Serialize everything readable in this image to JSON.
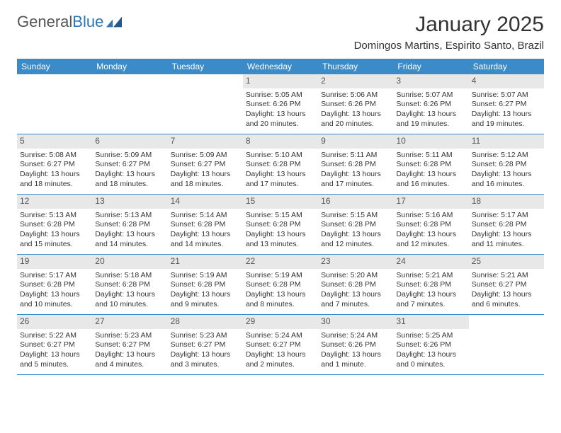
{
  "logo": {
    "text_general": "General",
    "text_blue": "Blue"
  },
  "title": "January 2025",
  "location": "Domingos Martins, Espirito Santo, Brazil",
  "colors": {
    "header_bg": "#3b8bc9",
    "header_text": "#ffffff",
    "daynum_bg": "#e8e8e8",
    "border": "#3b8bc9",
    "text": "#333333",
    "logo_gray": "#555555",
    "logo_blue": "#2e75b6"
  },
  "weekdays": [
    "Sunday",
    "Monday",
    "Tuesday",
    "Wednesday",
    "Thursday",
    "Friday",
    "Saturday"
  ],
  "weeks": [
    [
      null,
      null,
      null,
      {
        "n": "1",
        "sunrise": "5:05 AM",
        "sunset": "6:26 PM",
        "dl1": "Daylight: 13 hours",
        "dl2": "and 20 minutes."
      },
      {
        "n": "2",
        "sunrise": "5:06 AM",
        "sunset": "6:26 PM",
        "dl1": "Daylight: 13 hours",
        "dl2": "and 20 minutes."
      },
      {
        "n": "3",
        "sunrise": "5:07 AM",
        "sunset": "6:26 PM",
        "dl1": "Daylight: 13 hours",
        "dl2": "and 19 minutes."
      },
      {
        "n": "4",
        "sunrise": "5:07 AM",
        "sunset": "6:27 PM",
        "dl1": "Daylight: 13 hours",
        "dl2": "and 19 minutes."
      }
    ],
    [
      {
        "n": "5",
        "sunrise": "5:08 AM",
        "sunset": "6:27 PM",
        "dl1": "Daylight: 13 hours",
        "dl2": "and 18 minutes."
      },
      {
        "n": "6",
        "sunrise": "5:09 AM",
        "sunset": "6:27 PM",
        "dl1": "Daylight: 13 hours",
        "dl2": "and 18 minutes."
      },
      {
        "n": "7",
        "sunrise": "5:09 AM",
        "sunset": "6:27 PM",
        "dl1": "Daylight: 13 hours",
        "dl2": "and 18 minutes."
      },
      {
        "n": "8",
        "sunrise": "5:10 AM",
        "sunset": "6:28 PM",
        "dl1": "Daylight: 13 hours",
        "dl2": "and 17 minutes."
      },
      {
        "n": "9",
        "sunrise": "5:11 AM",
        "sunset": "6:28 PM",
        "dl1": "Daylight: 13 hours",
        "dl2": "and 17 minutes."
      },
      {
        "n": "10",
        "sunrise": "5:11 AM",
        "sunset": "6:28 PM",
        "dl1": "Daylight: 13 hours",
        "dl2": "and 16 minutes."
      },
      {
        "n": "11",
        "sunrise": "5:12 AM",
        "sunset": "6:28 PM",
        "dl1": "Daylight: 13 hours",
        "dl2": "and 16 minutes."
      }
    ],
    [
      {
        "n": "12",
        "sunrise": "5:13 AM",
        "sunset": "6:28 PM",
        "dl1": "Daylight: 13 hours",
        "dl2": "and 15 minutes."
      },
      {
        "n": "13",
        "sunrise": "5:13 AM",
        "sunset": "6:28 PM",
        "dl1": "Daylight: 13 hours",
        "dl2": "and 14 minutes."
      },
      {
        "n": "14",
        "sunrise": "5:14 AM",
        "sunset": "6:28 PM",
        "dl1": "Daylight: 13 hours",
        "dl2": "and 14 minutes."
      },
      {
        "n": "15",
        "sunrise": "5:15 AM",
        "sunset": "6:28 PM",
        "dl1": "Daylight: 13 hours",
        "dl2": "and 13 minutes."
      },
      {
        "n": "16",
        "sunrise": "5:15 AM",
        "sunset": "6:28 PM",
        "dl1": "Daylight: 13 hours",
        "dl2": "and 12 minutes."
      },
      {
        "n": "17",
        "sunrise": "5:16 AM",
        "sunset": "6:28 PM",
        "dl1": "Daylight: 13 hours",
        "dl2": "and 12 minutes."
      },
      {
        "n": "18",
        "sunrise": "5:17 AM",
        "sunset": "6:28 PM",
        "dl1": "Daylight: 13 hours",
        "dl2": "and 11 minutes."
      }
    ],
    [
      {
        "n": "19",
        "sunrise": "5:17 AM",
        "sunset": "6:28 PM",
        "dl1": "Daylight: 13 hours",
        "dl2": "and 10 minutes."
      },
      {
        "n": "20",
        "sunrise": "5:18 AM",
        "sunset": "6:28 PM",
        "dl1": "Daylight: 13 hours",
        "dl2": "and 10 minutes."
      },
      {
        "n": "21",
        "sunrise": "5:19 AM",
        "sunset": "6:28 PM",
        "dl1": "Daylight: 13 hours",
        "dl2": "and 9 minutes."
      },
      {
        "n": "22",
        "sunrise": "5:19 AM",
        "sunset": "6:28 PM",
        "dl1": "Daylight: 13 hours",
        "dl2": "and 8 minutes."
      },
      {
        "n": "23",
        "sunrise": "5:20 AM",
        "sunset": "6:28 PM",
        "dl1": "Daylight: 13 hours",
        "dl2": "and 7 minutes."
      },
      {
        "n": "24",
        "sunrise": "5:21 AM",
        "sunset": "6:28 PM",
        "dl1": "Daylight: 13 hours",
        "dl2": "and 7 minutes."
      },
      {
        "n": "25",
        "sunrise": "5:21 AM",
        "sunset": "6:27 PM",
        "dl1": "Daylight: 13 hours",
        "dl2": "and 6 minutes."
      }
    ],
    [
      {
        "n": "26",
        "sunrise": "5:22 AM",
        "sunset": "6:27 PM",
        "dl1": "Daylight: 13 hours",
        "dl2": "and 5 minutes."
      },
      {
        "n": "27",
        "sunrise": "5:23 AM",
        "sunset": "6:27 PM",
        "dl1": "Daylight: 13 hours",
        "dl2": "and 4 minutes."
      },
      {
        "n": "28",
        "sunrise": "5:23 AM",
        "sunset": "6:27 PM",
        "dl1": "Daylight: 13 hours",
        "dl2": "and 3 minutes."
      },
      {
        "n": "29",
        "sunrise": "5:24 AM",
        "sunset": "6:27 PM",
        "dl1": "Daylight: 13 hours",
        "dl2": "and 2 minutes."
      },
      {
        "n": "30",
        "sunrise": "5:24 AM",
        "sunset": "6:26 PM",
        "dl1": "Daylight: 13 hours",
        "dl2": "and 1 minute."
      },
      {
        "n": "31",
        "sunrise": "5:25 AM",
        "sunset": "6:26 PM",
        "dl1": "Daylight: 13 hours",
        "dl2": "and 0 minutes."
      },
      null
    ]
  ],
  "labels": {
    "sunrise_prefix": "Sunrise: ",
    "sunset_prefix": "Sunset: "
  }
}
